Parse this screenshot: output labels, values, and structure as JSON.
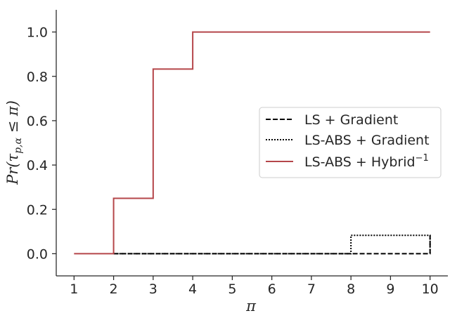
{
  "chart_data": {
    "type": "line",
    "step": true,
    "title": "",
    "xlabel": "π",
    "ylabel": "Pr(τ p,α ≤ π)",
    "ylabel_parts": {
      "prefix": "Pr(τ",
      "subscript": "p,α",
      "suffix": " ≤ π)"
    },
    "xlim": [
      0.55,
      10.45
    ],
    "ylim": [
      -0.1,
      1.1
    ],
    "xticks": [
      1,
      2,
      3,
      4,
      5,
      6,
      7,
      8,
      9,
      10
    ],
    "yticks": [
      0.0,
      0.2,
      0.4,
      0.6,
      0.8,
      1.0
    ],
    "ytick_labels": [
      "0.0",
      "0.2",
      "0.4",
      "0.6",
      "0.8",
      "1.0"
    ],
    "grid": false,
    "legend_position": "right",
    "series": [
      {
        "name": "LS + Gradient",
        "color": "#000000",
        "linestyle": "dashed",
        "x": [
          2,
          10,
          10
        ],
        "y": [
          0.0,
          0.0,
          0.083
        ]
      },
      {
        "name": "LS-ABS + Gradient",
        "color": "#000000",
        "linestyle": "dotted",
        "x": [
          2,
          8,
          8,
          10,
          10
        ],
        "y": [
          0.0,
          0.0,
          0.083,
          0.083,
          0.0
        ]
      },
      {
        "name": "LS-ABS + Hybrid",
        "name_superscript": "−1",
        "color": "#b5464a",
        "linestyle": "solid",
        "x": [
          1,
          2,
          2,
          3,
          3,
          4,
          4,
          10
        ],
        "y": [
          0.0,
          0.0,
          0.25,
          0.25,
          0.833,
          0.833,
          1.0,
          1.0
        ]
      }
    ]
  }
}
